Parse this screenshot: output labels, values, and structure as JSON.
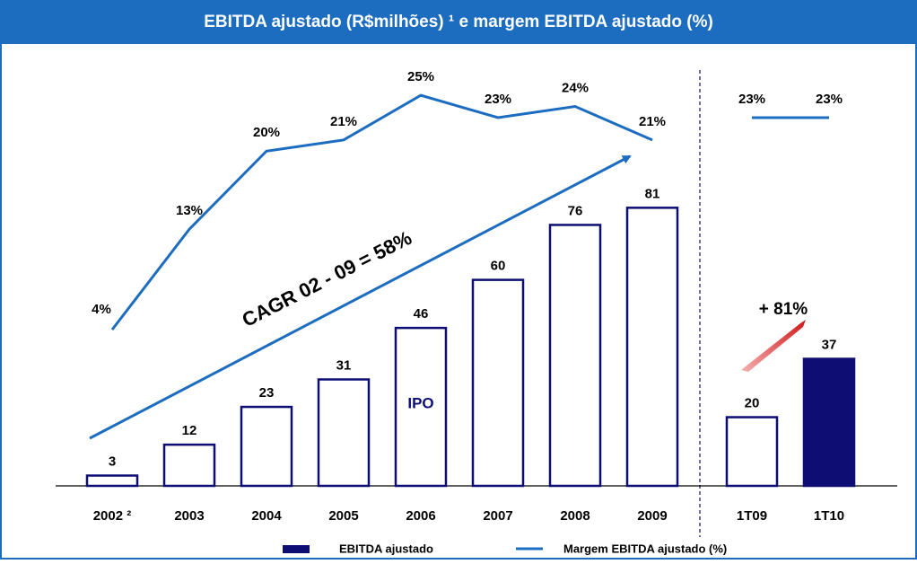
{
  "chart_data": {
    "type": "bar-line",
    "title": "EBITDA ajustado (R$milhões) ¹  e margem EBITDA ajustado (%)",
    "categories": [
      "2002 ²",
      "2003",
      "2004",
      "2005",
      "2006",
      "2007",
      "2008",
      "2009",
      null,
      "1T09",
      "1T10"
    ],
    "series": [
      {
        "name": "EBITDA ajustado",
        "type": "bar",
        "color": "#0d0d73",
        "fills": [
          "#ffffff",
          "#ffffff",
          "#ffffff",
          "#ffffff",
          "#ffffff",
          "#ffffff",
          "#ffffff",
          "#ffffff",
          null,
          "#ffffff",
          "#0d0d73"
        ],
        "values": [
          3,
          12,
          23,
          31,
          46,
          60,
          76,
          81,
          null,
          20,
          37
        ]
      },
      {
        "name": "Margem EBITDA ajustado (%)",
        "type": "line",
        "color": "#1c6cc0",
        "axis": "y2",
        "values": [
          4,
          13,
          20,
          21,
          25,
          23,
          24,
          21,
          null,
          23,
          23
        ],
        "value_labels": [
          "4%",
          "13%",
          "20%",
          "21%",
          "25%",
          "23%",
          "24%",
          "21%",
          null,
          "23%",
          "23%"
        ]
      }
    ],
    "ylim": [
      0,
      130
    ],
    "y2lim": [
      -10,
      30
    ],
    "annotations": [
      "CAGR 02 - 09 =   58%",
      "+ 81%",
      "IPO"
    ]
  }
}
